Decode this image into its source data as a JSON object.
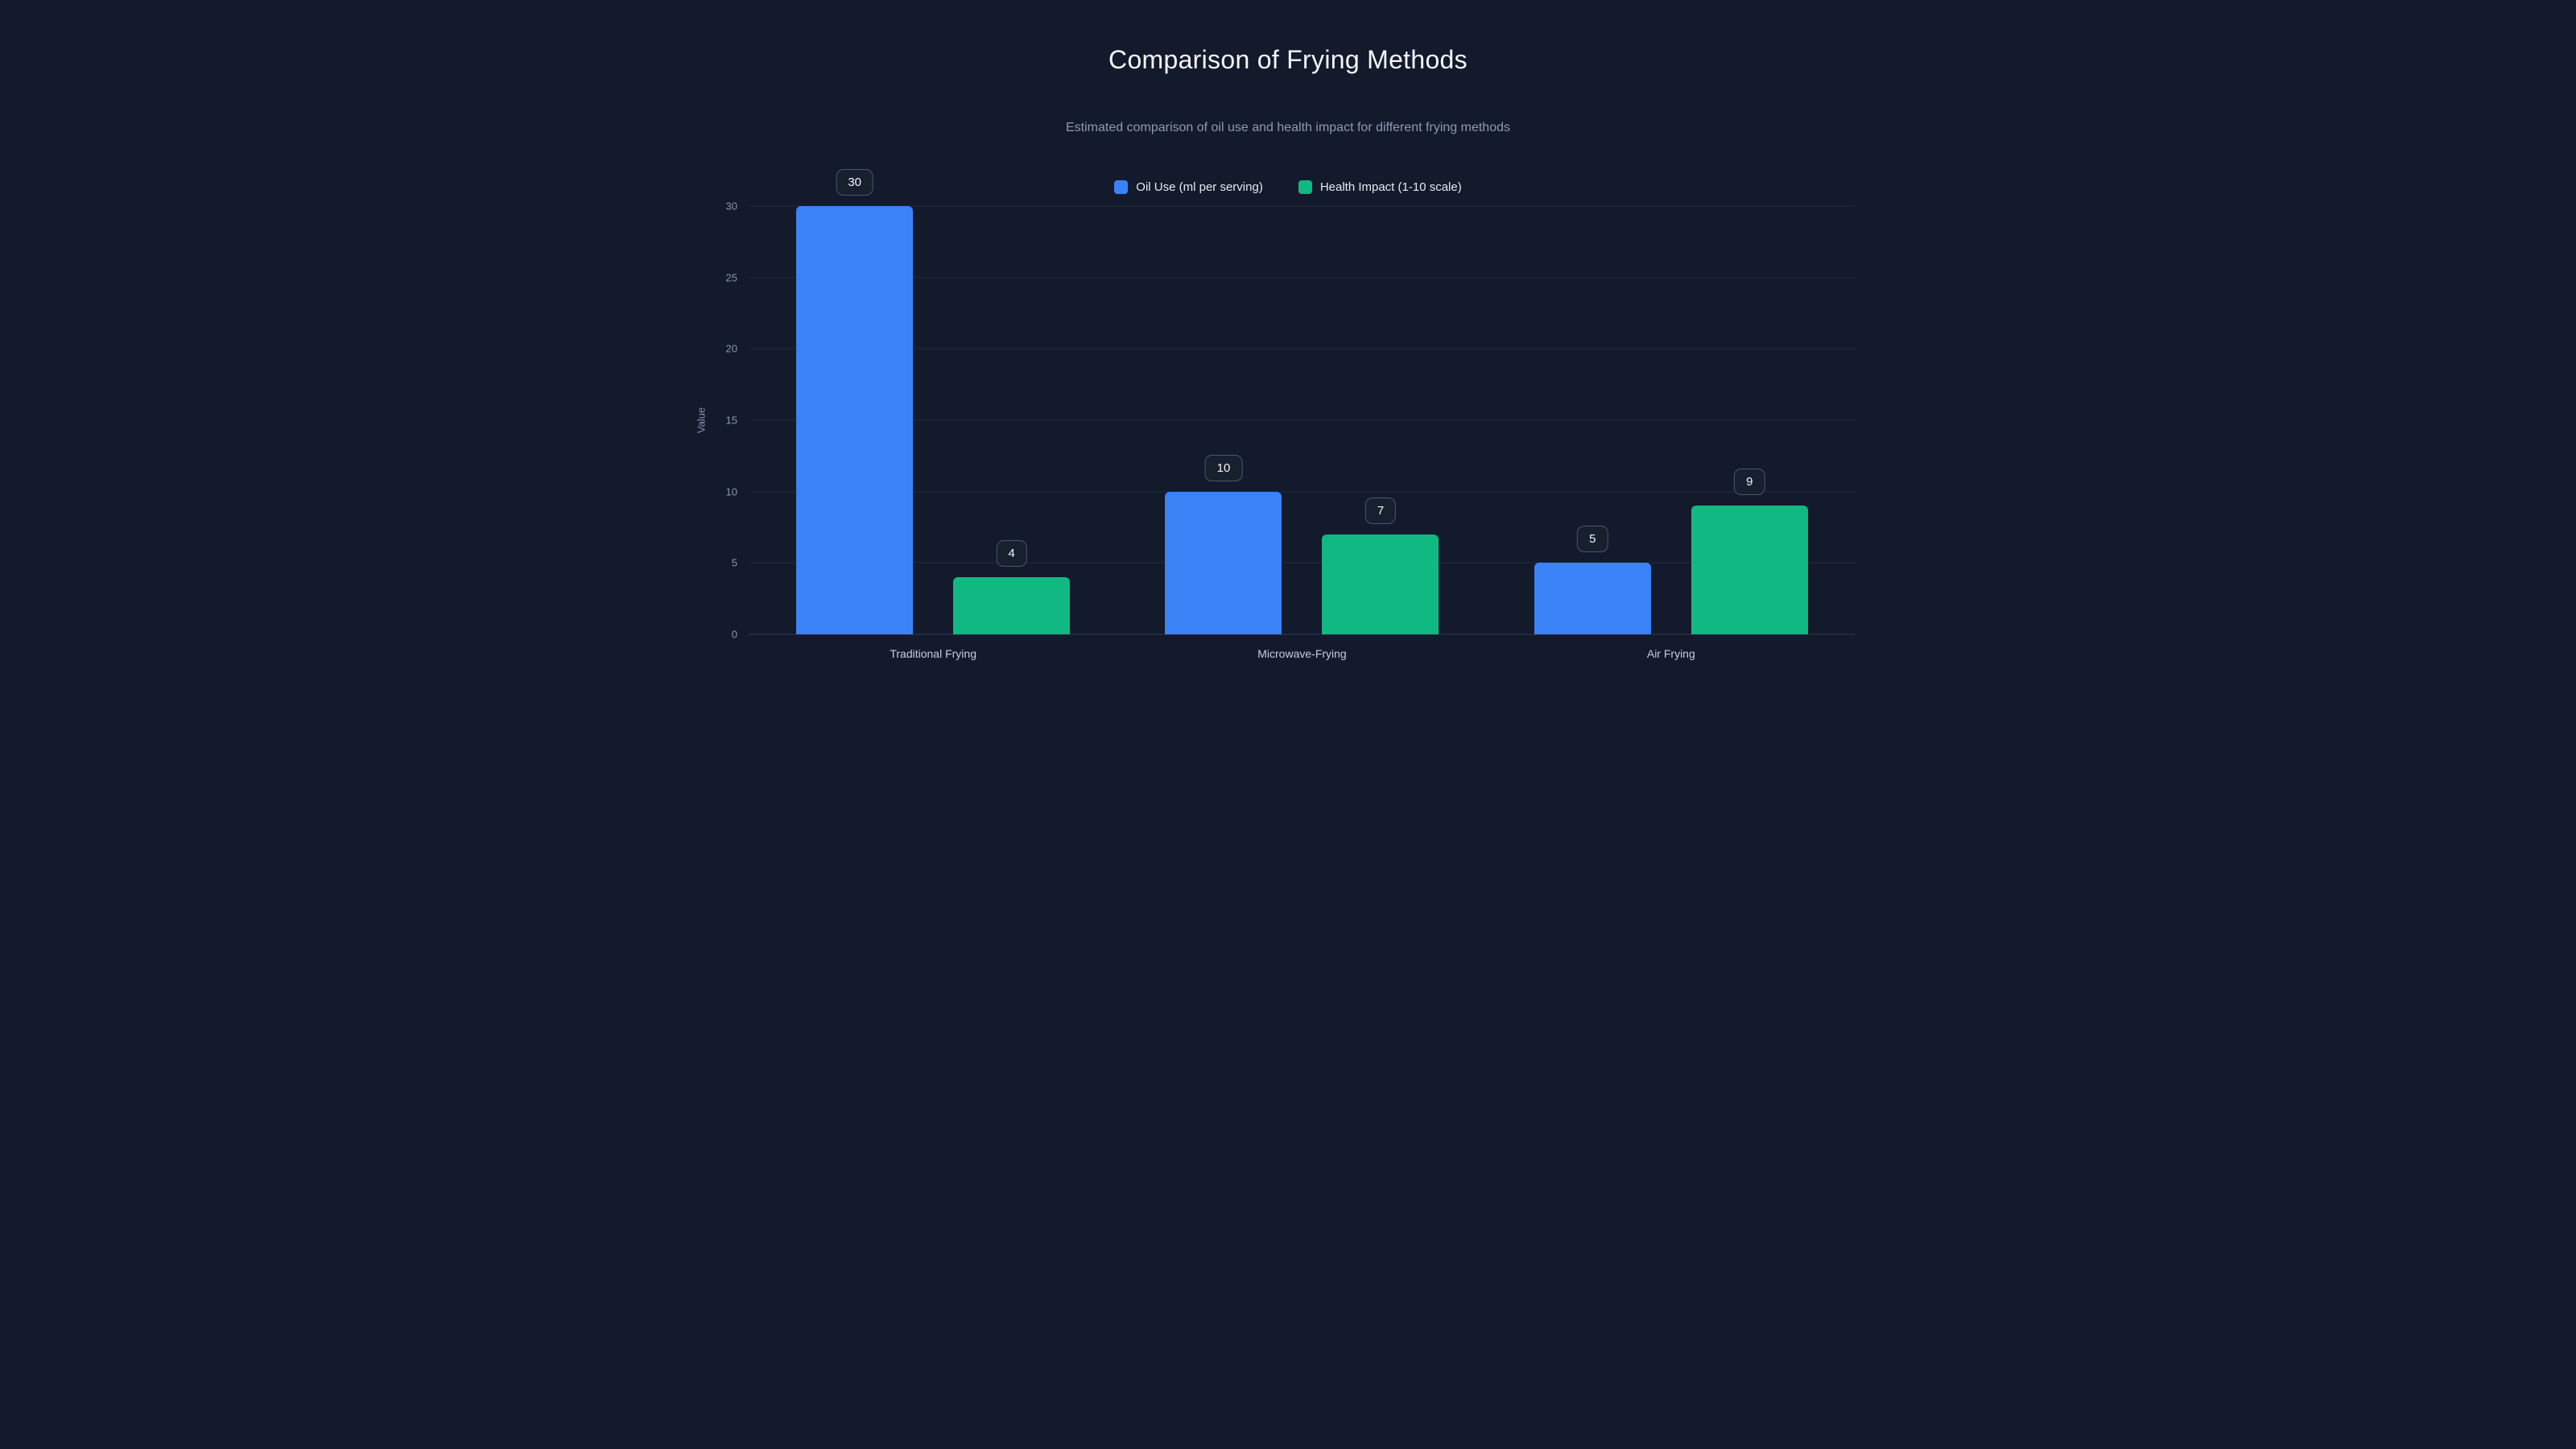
{
  "colors": {
    "background": "#121a2c",
    "oil_use_blue": "#3b82f6",
    "health_green": "#10b981"
  },
  "chart_data": {
    "type": "bar",
    "title": "Comparison of Frying Methods",
    "subtitle": "Estimated comparison of oil use and health impact for different frying methods",
    "categories": [
      "Traditional Frying",
      "Microwave-Frying",
      "Air Frying"
    ],
    "series": [
      {
        "name": "Oil Use (ml per serving)",
        "color": "#3b82f6",
        "values": [
          30,
          10,
          5
        ]
      },
      {
        "name": "Health Impact (1-10 scale)",
        "color": "#10b981",
        "values": [
          4,
          7,
          9
        ]
      }
    ],
    "xlabel": "",
    "ylabel": "Value",
    "ylim": [
      0,
      30
    ],
    "yticks": [
      0,
      5,
      10,
      15,
      20,
      25,
      30
    ],
    "grid": true,
    "legend_position": "top",
    "data_labels": true
  }
}
